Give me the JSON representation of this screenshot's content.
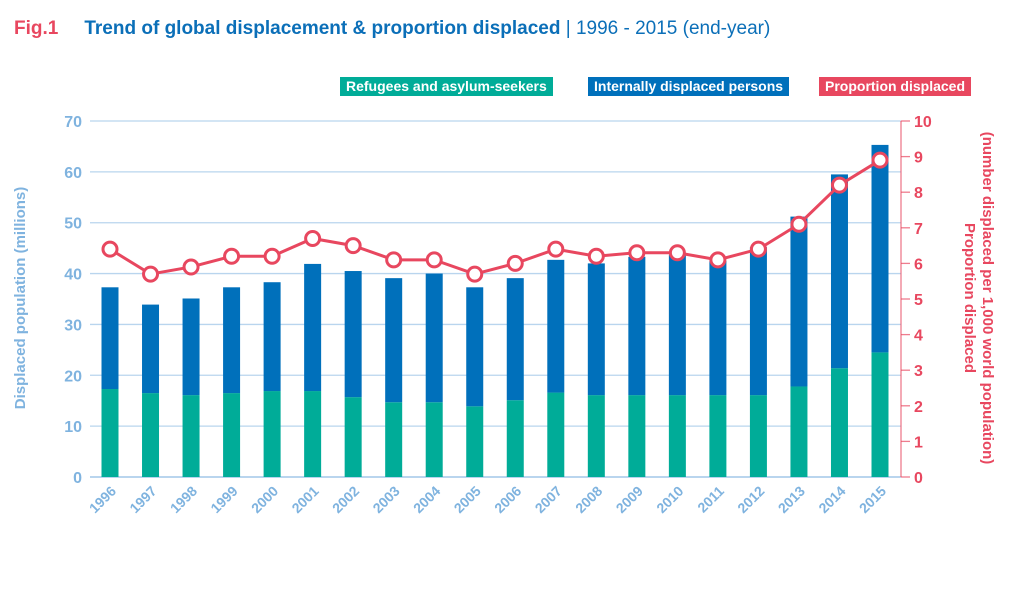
{
  "header": {
    "fig_label": "Fig.1",
    "title": "Trend of global displacement & proportion displaced",
    "subtitle": "| 1996 - 2015 (end-year)"
  },
  "chart_data": {
    "type": "bar",
    "stacked": true,
    "categories": [
      "1996",
      "1997",
      "1998",
      "1999",
      "2000",
      "2001",
      "2002",
      "2003",
      "2004",
      "2005",
      "2006",
      "2007",
      "2008",
      "2009",
      "2010",
      "2011",
      "2012",
      "2013",
      "2014",
      "2015"
    ],
    "series": [
      {
        "name": "Refugees and asylum-seekers",
        "color": "#00ac98",
        "axis": "left",
        "values": [
          17.3,
          16.5,
          16.1,
          16.5,
          16.9,
          16.9,
          15.7,
          14.7,
          14.7,
          13.9,
          15.1,
          16.6,
          16.1,
          16.1,
          16.1,
          16.1,
          16.1,
          17.8,
          21.4,
          24.5
        ]
      },
      {
        "name": "Internally displaced persons",
        "color": "#0070bb",
        "axis": "left",
        "values": [
          20.0,
          17.4,
          19.0,
          20.8,
          21.4,
          25.0,
          24.8,
          24.4,
          25.3,
          23.4,
          24.0,
          26.1,
          25.9,
          27.2,
          27.6,
          26.4,
          29.1,
          33.4,
          38.1,
          40.8
        ]
      },
      {
        "name": "Proportion displaced",
        "color": "#e8475f",
        "axis": "right",
        "type": "line",
        "values": [
          6.4,
          5.7,
          5.9,
          6.2,
          6.2,
          6.7,
          6.5,
          6.1,
          6.1,
          5.7,
          6.0,
          6.4,
          6.2,
          6.3,
          6.3,
          6.1,
          6.4,
          7.1,
          8.2,
          8.9
        ]
      }
    ],
    "ylabel": "Displaced population (millions)",
    "ylim": [
      0,
      70
    ],
    "yticks": [
      "0",
      "10",
      "20",
      "30",
      "40",
      "50",
      "60",
      "70"
    ],
    "y2label": [
      "Proportion displaced",
      "(number displaced per 1,000 world population)"
    ],
    "y2lim": [
      0,
      10
    ],
    "y2ticks": [
      "0",
      "1",
      "2",
      "3",
      "4",
      "5",
      "6",
      "7",
      "8",
      "9",
      "10"
    ],
    "grid": true,
    "legend": "top-right",
    "axis_color": "#7fb3df"
  }
}
